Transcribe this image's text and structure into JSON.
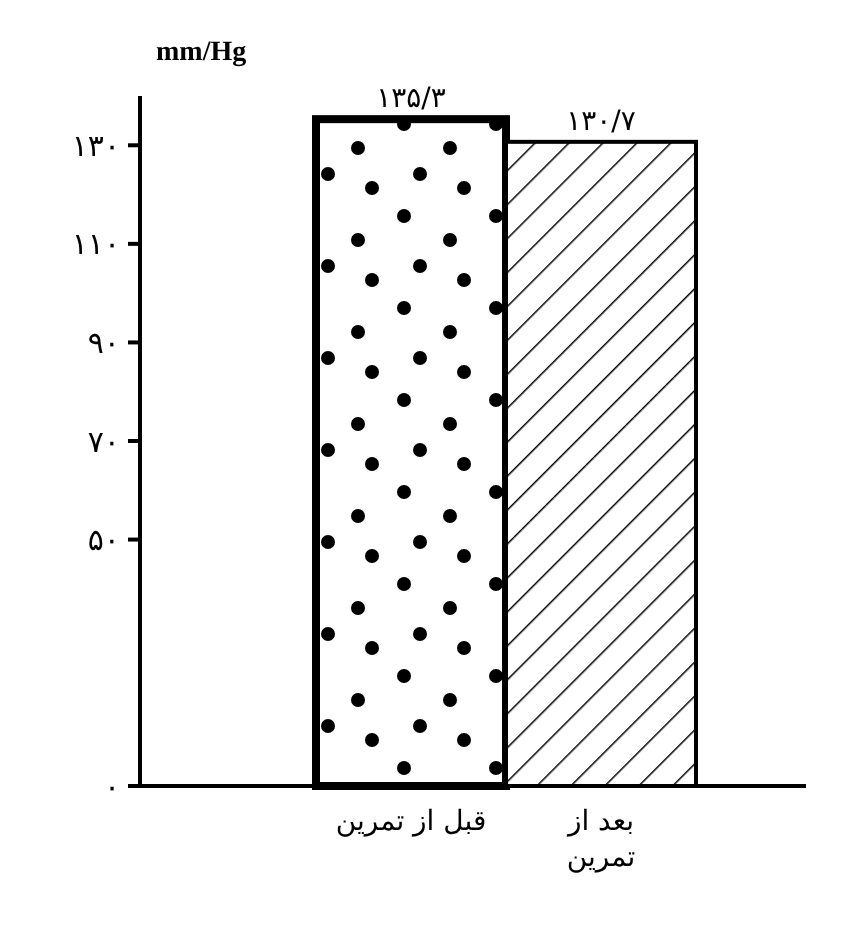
{
  "chart_data": {
    "type": "bar",
    "ylabel": "mm/Hg",
    "categories": [
      "قبل از تمرین",
      "بعد از تمرین"
    ],
    "values": [
      135.3,
      130.7
    ],
    "value_labels": [
      "۱۳۵/۳",
      "۱۳۰/۷"
    ],
    "color": "#000000",
    "ylim": [
      0,
      140
    ],
    "yticks": [
      {
        "value": 0,
        "label": "۰"
      },
      {
        "value": 50,
        "label": "۵۰"
      },
      {
        "value": 70,
        "label": "۷۰"
      },
      {
        "value": 90,
        "label": "۹۰"
      },
      {
        "value": 110,
        "label": "۱۱۰"
      },
      {
        "value": 130,
        "label": "۱۳۰"
      }
    ],
    "grid": false
  }
}
